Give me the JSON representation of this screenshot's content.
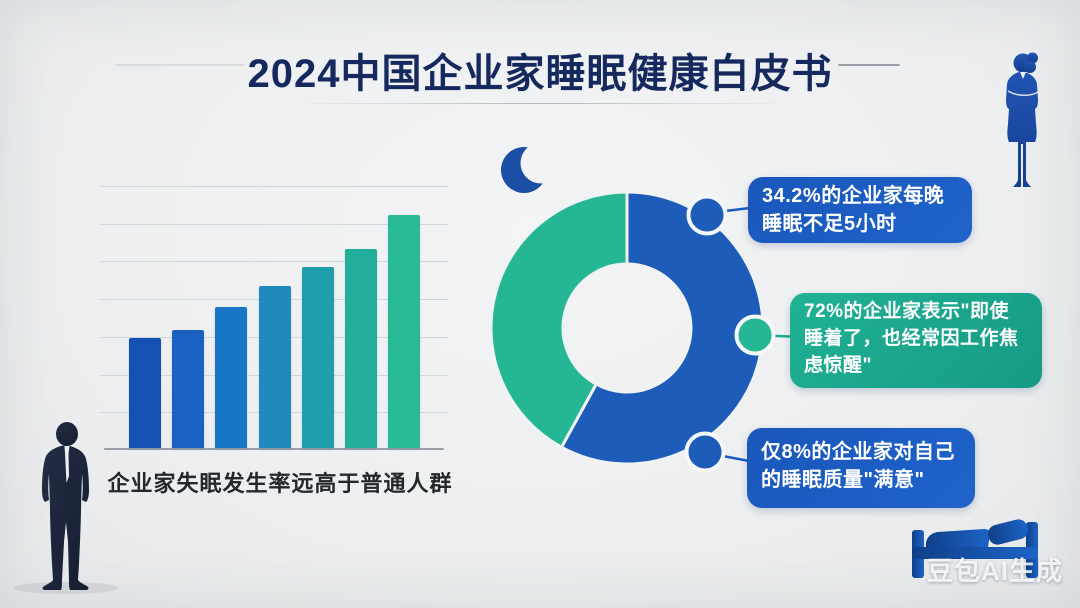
{
  "title": "2024中国企业家睡眠健康白皮书",
  "colors": {
    "background": "#edeff0",
    "title_text": "#16295e",
    "donut_blue": "#1d5cb8",
    "donut_teal": "#25b794",
    "box_blue": "#1b5cc0",
    "box_teal": "#1ba88e",
    "caption_text": "#24272c",
    "silhouette_navy": "#1c2538",
    "moon_blue": "#1b4fa5",
    "bed_blue": "#1a5cb9"
  },
  "bar_chart": {
    "caption": "企业家失眠发生率远高于普通人群"
  },
  "callouts": [
    {
      "text": "34.2%的企业家每晚睡眠不足5小时",
      "color": "#1b5cc0",
      "connector_dot": "blue"
    },
    {
      "text": "72%的企业家表示\"即使睡着了，也经常因工作焦虑惊醒\"",
      "color": "#1ba88e",
      "connector_dot": "teal"
    },
    {
      "text": "仅8%的企业家对自己的睡眠质量\"满意\"",
      "color": "#1b5cc0",
      "connector_dot": "blue"
    }
  ],
  "watermark": "豆包AI生成",
  "icons": [
    "moon-icon",
    "bed-icon",
    "businessman-silhouette",
    "businesswoman-silhouette"
  ],
  "chart_data": [
    {
      "type": "bar",
      "title": "企业家失眠发生率远高于普通人群",
      "categories": [
        "",
        "",
        "",
        "",
        "",
        "",
        ""
      ],
      "values": [
        42,
        45,
        54,
        62,
        69,
        76,
        89
      ],
      "colors": [
        "#1451b2",
        "#1b61c4",
        "#1976c7",
        "#208abc",
        "#1f9dad",
        "#23ae9b",
        "#28ba93"
      ],
      "xlabel": "",
      "ylabel": "",
      "ylim": [
        0,
        100
      ],
      "grid": true,
      "note": "bars are unlabeled; values estimated as percent of plot height"
    },
    {
      "type": "pie",
      "donut": true,
      "start_angle_deg": 0,
      "slices": [
        {
          "name": "blue-segment",
          "percent": 58,
          "color": "#1d5cb8"
        },
        {
          "name": "teal-segment",
          "percent": 42,
          "color": "#25b794"
        }
      ],
      "annotations": [
        "34.2%的企业家每晚睡眠不足5小时",
        "72%的企业家表示\"即使睡着了，也经常因工作焦虑惊醒\"",
        "仅8%的企业家对自己的睡眠质量\"满意\""
      ],
      "note": "segments are unlabeled; sizes estimated from the figure"
    }
  ]
}
